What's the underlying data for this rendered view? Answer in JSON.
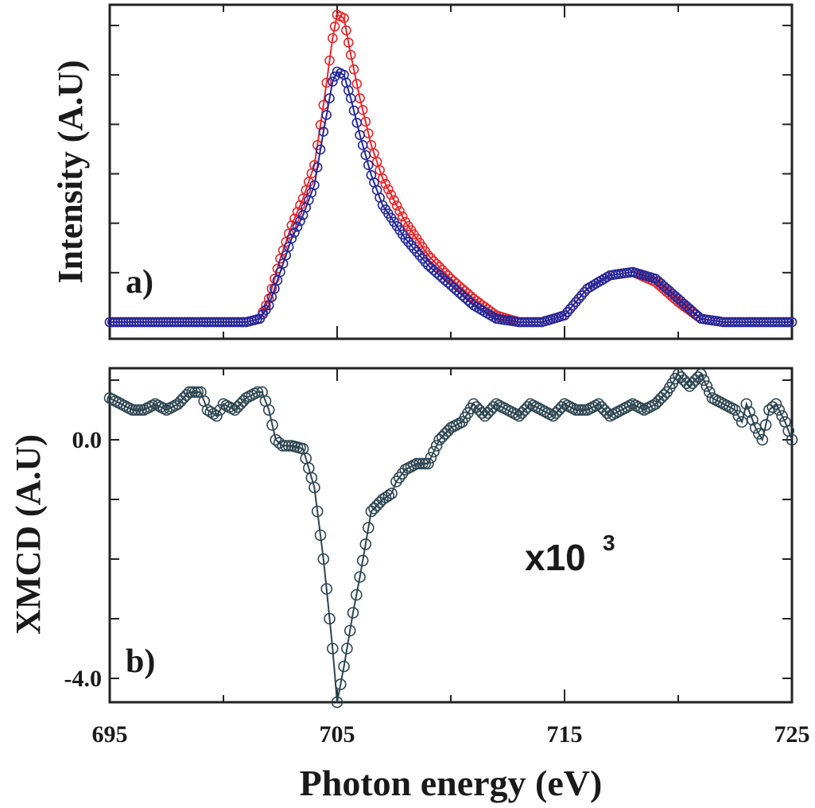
{
  "chart_data": [
    {
      "panel": "a)",
      "type": "scatter",
      "xlabel": "Photon energy (eV)",
      "ylabel": "Intensity (A.U)",
      "xlim": [
        695,
        725
      ],
      "ylim": [
        0,
        1.0
      ],
      "x_ticks": [
        695,
        705,
        715,
        725
      ],
      "x_ticklabels_shown": false,
      "y_ticklabels_shown": false,
      "series": [
        {
          "name": "red",
          "color": "#e8262a",
          "points": [
            [
              695,
              0.05
            ],
            [
              697,
              0.05
            ],
            [
              699,
              0.05
            ],
            [
              701,
              0.05
            ],
            [
              701.6,
              0.06
            ],
            [
              702,
              0.12
            ],
            [
              702.5,
              0.24
            ],
            [
              703,
              0.34
            ],
            [
              703.5,
              0.42
            ],
            [
              704,
              0.52
            ],
            [
              704.4,
              0.7
            ],
            [
              704.8,
              0.9
            ],
            [
              705,
              0.97
            ],
            [
              705.3,
              0.96
            ],
            [
              705.6,
              0.85
            ],
            [
              706,
              0.72
            ],
            [
              706.5,
              0.58
            ],
            [
              707,
              0.48
            ],
            [
              708,
              0.35
            ],
            [
              709,
              0.25
            ],
            [
              710,
              0.18
            ],
            [
              711,
              0.12
            ],
            [
              712,
              0.07
            ],
            [
              713,
              0.05
            ],
            [
              714,
              0.05
            ],
            [
              715,
              0.07
            ],
            [
              716,
              0.15
            ],
            [
              717,
              0.19
            ],
            [
              718,
              0.2
            ],
            [
              719,
              0.17
            ],
            [
              720,
              0.11
            ],
            [
              721,
              0.06
            ],
            [
              722,
              0.05
            ],
            [
              723,
              0.05
            ],
            [
              724,
              0.05
            ],
            [
              725,
              0.05
            ]
          ]
        },
        {
          "name": "blue",
          "color": "#22279a",
          "points": [
            [
              695,
              0.05
            ],
            [
              697,
              0.05
            ],
            [
              699,
              0.05
            ],
            [
              701,
              0.05
            ],
            [
              701.6,
              0.06
            ],
            [
              702,
              0.1
            ],
            [
              702.5,
              0.2
            ],
            [
              703,
              0.3
            ],
            [
              703.5,
              0.37
            ],
            [
              704,
              0.46
            ],
            [
              704.4,
              0.62
            ],
            [
              704.8,
              0.77
            ],
            [
              705,
              0.8
            ],
            [
              705.3,
              0.79
            ],
            [
              705.6,
              0.72
            ],
            [
              706,
              0.61
            ],
            [
              706.5,
              0.49
            ],
            [
              707,
              0.4
            ],
            [
              708,
              0.3
            ],
            [
              709,
              0.22
            ],
            [
              710,
              0.16
            ],
            [
              711,
              0.1
            ],
            [
              712,
              0.06
            ],
            [
              713,
              0.05
            ],
            [
              714,
              0.05
            ],
            [
              715,
              0.07
            ],
            [
              716,
              0.15
            ],
            [
              717,
              0.19
            ],
            [
              718,
              0.2
            ],
            [
              719,
              0.18
            ],
            [
              720,
              0.12
            ],
            [
              721,
              0.06
            ],
            [
              722,
              0.05
            ],
            [
              723,
              0.05
            ],
            [
              724,
              0.05
            ],
            [
              725,
              0.05
            ]
          ]
        }
      ]
    },
    {
      "panel": "b)",
      "type": "scatter",
      "xlabel": "Photon energy (eV)",
      "ylabel": "XMCD (A.U)",
      "scale_note": "x10",
      "scale_exponent": "3",
      "xlim": [
        695,
        725
      ],
      "ylim": [
        -4.4,
        1.2
      ],
      "x_ticks": [
        695,
        705,
        715,
        725
      ],
      "x_ticklabels": [
        "695",
        "705",
        "715",
        "725"
      ],
      "y_ticks": [
        0.0,
        -4.0
      ],
      "y_ticklabels": [
        "0.0",
        "-4.0"
      ],
      "series": [
        {
          "name": "XMCD",
          "color": "#2d4550",
          "points": [
            [
              695,
              0.7
            ],
            [
              695.5,
              0.6
            ],
            [
              696,
              0.5
            ],
            [
              696.5,
              0.5
            ],
            [
              697,
              0.6
            ],
            [
              697.5,
              0.5
            ],
            [
              698,
              0.6
            ],
            [
              698.5,
              0.8
            ],
            [
              699,
              0.8
            ],
            [
              699.3,
              0.5
            ],
            [
              699.7,
              0.4
            ],
            [
              700,
              0.6
            ],
            [
              700.5,
              0.5
            ],
            [
              701,
              0.7
            ],
            [
              701.5,
              0.8
            ],
            [
              701.7,
              0.8
            ],
            [
              702,
              0.5
            ],
            [
              702.3,
              0.0
            ],
            [
              702.6,
              -0.1
            ],
            [
              703,
              -0.1
            ],
            [
              703.5,
              -0.15
            ],
            [
              704,
              -0.8
            ],
            [
              704.4,
              -2.0
            ],
            [
              704.8,
              -3.5
            ],
            [
              705,
              -4.4
            ],
            [
              705.3,
              -3.8
            ],
            [
              705.7,
              -2.9
            ],
            [
              706,
              -2.3
            ],
            [
              706.5,
              -1.2
            ],
            [
              707,
              -1.0
            ],
            [
              707.4,
              -0.9
            ],
            [
              707.6,
              -0.7
            ],
            [
              708,
              -0.5
            ],
            [
              708.5,
              -0.4
            ],
            [
              709,
              -0.4
            ],
            [
              709.5,
              0.0
            ],
            [
              710,
              0.2
            ],
            [
              710.5,
              0.3
            ],
            [
              711,
              0.6
            ],
            [
              711.5,
              0.4
            ],
            [
              712,
              0.6
            ],
            [
              712.5,
              0.5
            ],
            [
              713,
              0.4
            ],
            [
              713.5,
              0.6
            ],
            [
              714,
              0.5
            ],
            [
              714.5,
              0.4
            ],
            [
              715,
              0.6
            ],
            [
              715.5,
              0.5
            ],
            [
              716,
              0.5
            ],
            [
              716.5,
              0.6
            ],
            [
              717,
              0.4
            ],
            [
              717.5,
              0.5
            ],
            [
              718,
              0.6
            ],
            [
              718.5,
              0.5
            ],
            [
              719,
              0.6
            ],
            [
              719.5,
              0.8
            ],
            [
              720,
              1.1
            ],
            [
              720.5,
              0.9
            ],
            [
              721,
              1.1
            ],
            [
              721.5,
              0.7
            ],
            [
              722,
              0.6
            ],
            [
              722.5,
              0.5
            ],
            [
              722.8,
              0.3
            ],
            [
              723,
              0.6
            ],
            [
              723.4,
              0.2
            ],
            [
              723.7,
              0.0
            ],
            [
              724,
              0.5
            ],
            [
              724.3,
              0.6
            ],
            [
              724.7,
              0.3
            ],
            [
              725,
              0.0
            ]
          ]
        }
      ]
    }
  ]
}
